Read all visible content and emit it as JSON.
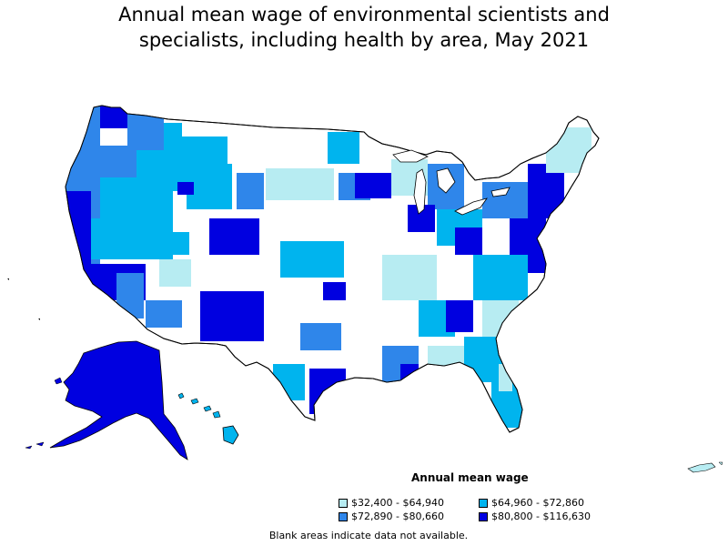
{
  "title_line1": "Annual mean wage of environmental scientists and",
  "title_line2": "specialists, including health by area, May 2021",
  "legend": {
    "title": "Annual mean wage",
    "items": [
      {
        "label": "$32,400 - $64,940",
        "color": "#b7ecf2"
      },
      {
        "label": "$64,960 - $72,860",
        "color": "#00b4ee"
      },
      {
        "label": "$72,890 - $80,660",
        "color": "#2f86ea"
      },
      {
        "label": "$80,800 - $116,630",
        "color": "#0000e0"
      }
    ]
  },
  "note": "Blank areas indicate data not available.",
  "colors": {
    "no_data": "#ffffff",
    "border": "#000000",
    "water": "#ffffff"
  }
}
